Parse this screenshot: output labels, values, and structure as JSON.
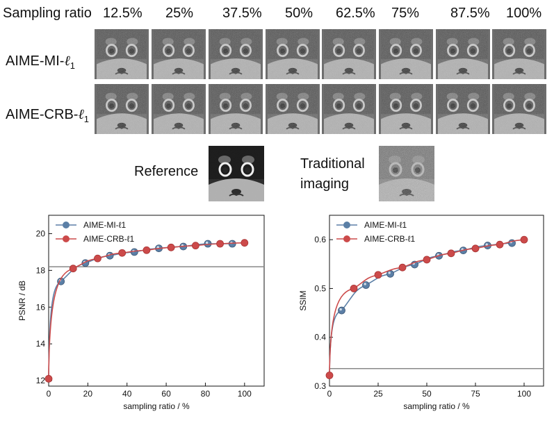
{
  "header": {
    "row_label": "Sampling ratio",
    "ratios": [
      "12.5%",
      "25%",
      "37.5%",
      "50%",
      "62.5%",
      "75%",
      "87.5%",
      "100%"
    ]
  },
  "rows": [
    {
      "label_prefix": "AIME-MI-",
      "label_script": "ℓ",
      "label_sub": "1"
    },
    {
      "label_prefix": "AIME-CRB-",
      "label_script": "ℓ",
      "label_sub": "1"
    }
  ],
  "references": {
    "reference_label": "Reference",
    "traditional_label_line1": "Traditional",
    "traditional_label_line2": "imaging"
  },
  "colors": {
    "mi": "#5b7fa6",
    "crb": "#cc4a4a",
    "baseline": "#888888"
  },
  "chart_data": [
    {
      "type": "line",
      "xlabel": "sampling ratio / %",
      "ylabel": "PSNR / dB",
      "xlim": [
        0,
        110
      ],
      "ylim": [
        11.7,
        21
      ],
      "xticks": [
        0,
        20,
        40,
        60,
        80,
        100
      ],
      "yticks": [
        12,
        14,
        16,
        18,
        20
      ],
      "baseline": 18.2,
      "series": [
        {
          "name": "AIME-MI-ℓ1",
          "marker_x": [
            6.25,
            18.75,
            31.25,
            43.75,
            56.25,
            68.75,
            81.25,
            93.75
          ],
          "marker_y": [
            17.4,
            18.4,
            18.8,
            19.0,
            19.2,
            19.3,
            19.45,
            19.45
          ]
        },
        {
          "name": "AIME-CRB-ℓ1",
          "marker_x": [
            0,
            12.5,
            25,
            37.5,
            50,
            62.5,
            75,
            87.5,
            100
          ],
          "marker_y": [
            12.1,
            18.1,
            18.65,
            18.95,
            19.1,
            19.25,
            19.35,
            19.45,
            19.5
          ]
        }
      ]
    },
    {
      "type": "line",
      "xlabel": "sampling ratio / %",
      "ylabel": "SSIM",
      "xlim": [
        0,
        110
      ],
      "ylim": [
        0.3,
        0.65
      ],
      "xticks": [
        0,
        25,
        50,
        75,
        100
      ],
      "yticks": [
        0.3,
        0.4,
        0.5,
        0.6
      ],
      "baseline": 0.336,
      "series": [
        {
          "name": "AIME-MI-ℓ1",
          "marker_x": [
            6.25,
            18.75,
            31.25,
            43.75,
            56.25,
            68.75,
            81.25,
            93.75
          ],
          "marker_y": [
            0.455,
            0.507,
            0.53,
            0.549,
            0.567,
            0.578,
            0.588,
            0.593
          ]
        },
        {
          "name": "AIME-CRB-ℓ1",
          "marker_x": [
            0,
            12.5,
            25,
            37.5,
            50,
            62.5,
            75,
            87.5,
            100
          ],
          "marker_y": [
            0.322,
            0.5,
            0.528,
            0.543,
            0.559,
            0.572,
            0.582,
            0.59,
            0.6
          ]
        }
      ]
    }
  ]
}
